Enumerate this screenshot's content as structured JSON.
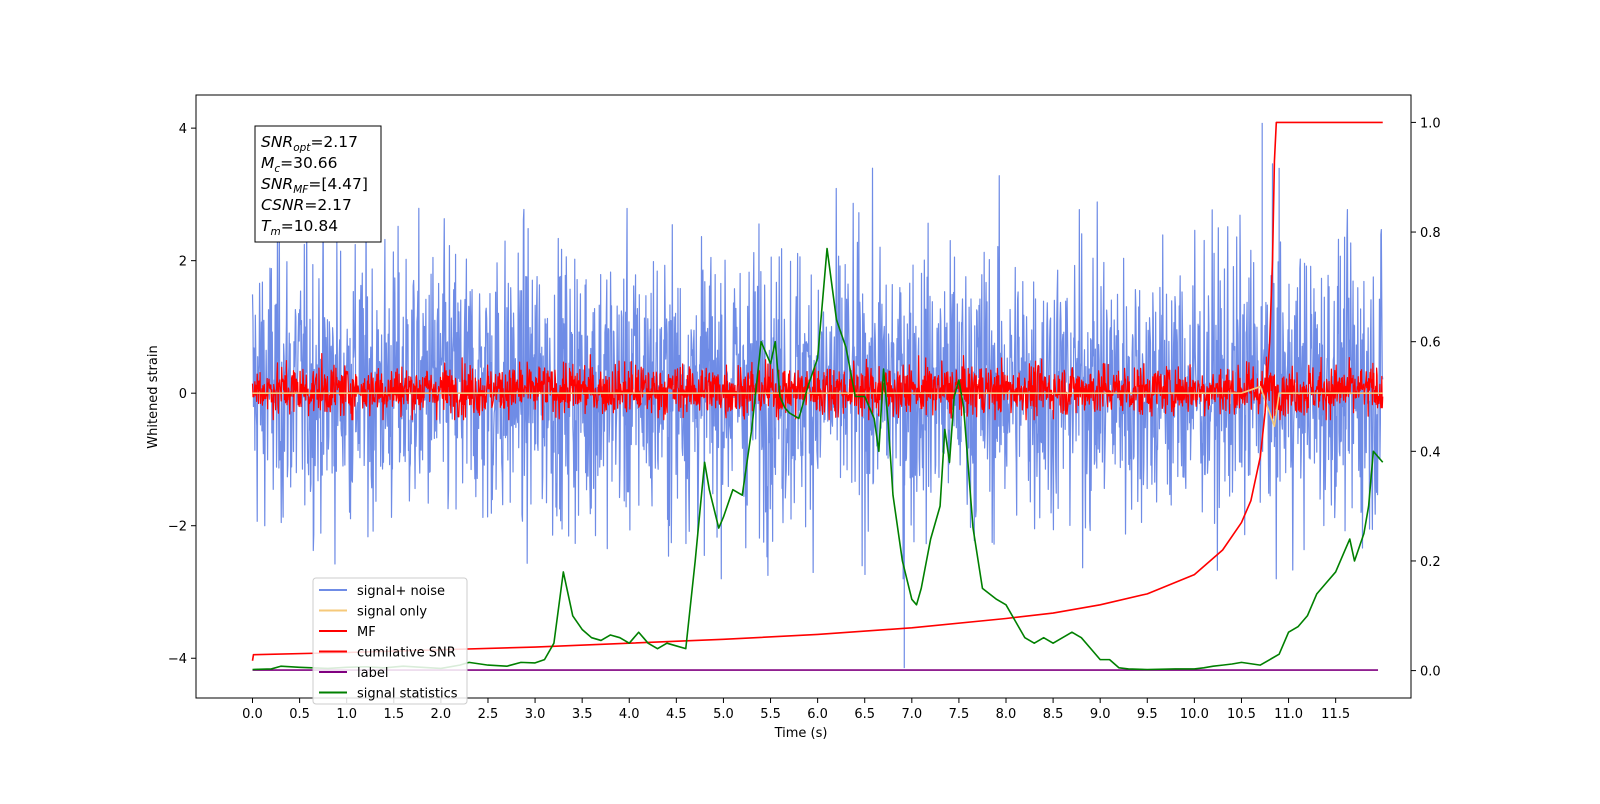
{
  "chart_data": {
    "type": "line",
    "title": "",
    "xlabel": "Time (s)",
    "ylabel": "Whitened strain",
    "xlim": [
      -0.6,
      12.3
    ],
    "ylim_left": [
      -4.6,
      4.5
    ],
    "ylim_right": [
      -0.05,
      1.05
    ],
    "x_ticks": [
      0.0,
      0.5,
      1.0,
      1.5,
      2.0,
      2.5,
      3.0,
      3.5,
      4.0,
      4.5,
      5.0,
      5.5,
      6.0,
      6.5,
      7.0,
      7.5,
      8.0,
      8.5,
      9.0,
      9.5,
      10.0,
      10.5,
      11.0,
      11.5
    ],
    "x_tick_labels": [
      "0.0",
      "0.5",
      "1.0",
      "1.5",
      "2.0",
      "2.5",
      "3.0",
      "3.5",
      "4.0",
      "4.5",
      "5.0",
      "5.5",
      "6.0",
      "6.5",
      "7.0",
      "7.5",
      "8.0",
      "8.5",
      "9.0",
      "9.5",
      "10.0",
      "10.5",
      "11.0",
      "11.5"
    ],
    "y_ticks_left": [
      -4,
      -2,
      0,
      2,
      4
    ],
    "y_tick_labels_left": [
      "−4",
      "−2",
      "0",
      "2",
      "4"
    ],
    "y_ticks_right": [
      0.0,
      0.2,
      0.4,
      0.6,
      0.8,
      1.0
    ],
    "y_tick_labels_right": [
      "0.0",
      "0.2",
      "0.4",
      "0.6",
      "0.8",
      "1.0"
    ],
    "grid": false,
    "legend_position": "lower-left",
    "series": [
      {
        "name": "signal+ noise",
        "axis": "left",
        "color": "#6f8ce6",
        "style": "noise",
        "x_range": [
          0.0,
          12.0
        ],
        "typical_range": [
          -1.8,
          2.0
        ],
        "peak_range": [
          -2.8,
          4.0
        ],
        "spikes": [
          {
            "x": 6.92,
            "y": -4.15
          },
          {
            "x": 10.72,
            "y": 4.08
          },
          {
            "x": 10.9,
            "y": 3.4
          }
        ]
      },
      {
        "name": "signal only",
        "axis": "left",
        "color": "#f6c97a",
        "points": [
          [
            0.0,
            0.0
          ],
          [
            10.5,
            0.0
          ],
          [
            10.7,
            0.1
          ],
          [
            10.8,
            -0.3
          ],
          [
            10.85,
            -0.5
          ],
          [
            10.9,
            0.0
          ],
          [
            12.0,
            0.0
          ]
        ]
      },
      {
        "name": "MF",
        "axis": "left",
        "color": "#ff0000",
        "style": "noise",
        "x_range": [
          0.0,
          12.0
        ],
        "typical_range": [
          -0.3,
          0.4
        ],
        "peak_range": [
          -0.4,
          0.85
        ]
      },
      {
        "name": "cumilative SNR",
        "axis": "right",
        "color": "#ff0000",
        "points": [
          [
            0.0,
            0.018
          ],
          [
            0.01,
            0.029
          ],
          [
            1.0,
            0.033
          ],
          [
            2.0,
            0.038
          ],
          [
            3.0,
            0.043
          ],
          [
            4.0,
            0.05
          ],
          [
            5.0,
            0.057
          ],
          [
            6.0,
            0.066
          ],
          [
            7.0,
            0.078
          ],
          [
            8.0,
            0.095
          ],
          [
            8.5,
            0.105
          ],
          [
            9.0,
            0.12
          ],
          [
            9.5,
            0.14
          ],
          [
            10.0,
            0.175
          ],
          [
            10.3,
            0.22
          ],
          [
            10.5,
            0.27
          ],
          [
            10.6,
            0.31
          ],
          [
            10.7,
            0.39
          ],
          [
            10.75,
            0.47
          ],
          [
            10.8,
            0.6
          ],
          [
            10.83,
            0.75
          ],
          [
            10.85,
            0.93
          ],
          [
            10.87,
            1.0
          ],
          [
            12.0,
            1.0
          ]
        ]
      },
      {
        "name": "label",
        "axis": "right",
        "color": "#800080",
        "points": [
          [
            0.0,
            0.001
          ],
          [
            11.95,
            0.001
          ]
        ]
      },
      {
        "name": "signal statistics",
        "axis": "right",
        "color": "#008000",
        "points": [
          [
            0.0,
            0.002
          ],
          [
            0.2,
            0.003
          ],
          [
            0.3,
            0.008
          ],
          [
            0.5,
            0.006
          ],
          [
            0.8,
            0.004
          ],
          [
            1.0,
            0.006
          ],
          [
            1.2,
            0.007
          ],
          [
            1.4,
            0.005
          ],
          [
            1.6,
            0.008
          ],
          [
            1.8,
            0.006
          ],
          [
            2.0,
            0.004
          ],
          [
            2.2,
            0.01
          ],
          [
            2.3,
            0.015
          ],
          [
            2.5,
            0.01
          ],
          [
            2.7,
            0.008
          ],
          [
            2.85,
            0.015
          ],
          [
            3.0,
            0.014
          ],
          [
            3.1,
            0.02
          ],
          [
            3.2,
            0.05
          ],
          [
            3.3,
            0.18
          ],
          [
            3.4,
            0.1
          ],
          [
            3.5,
            0.075
          ],
          [
            3.6,
            0.06
          ],
          [
            3.7,
            0.055
          ],
          [
            3.8,
            0.065
          ],
          [
            3.9,
            0.06
          ],
          [
            4.0,
            0.05
          ],
          [
            4.05,
            0.06
          ],
          [
            4.1,
            0.07
          ],
          [
            4.15,
            0.06
          ],
          [
            4.2,
            0.05
          ],
          [
            4.3,
            0.04
          ],
          [
            4.4,
            0.05
          ],
          [
            4.5,
            0.045
          ],
          [
            4.6,
            0.04
          ],
          [
            4.7,
            0.2
          ],
          [
            4.8,
            0.38
          ],
          [
            4.85,
            0.33
          ],
          [
            4.95,
            0.26
          ],
          [
            5.0,
            0.28
          ],
          [
            5.1,
            0.33
          ],
          [
            5.2,
            0.32
          ],
          [
            5.3,
            0.44
          ],
          [
            5.4,
            0.6
          ],
          [
            5.5,
            0.56
          ],
          [
            5.55,
            0.6
          ],
          [
            5.6,
            0.5
          ],
          [
            5.65,
            0.48
          ],
          [
            5.7,
            0.47
          ],
          [
            5.8,
            0.46
          ],
          [
            5.9,
            0.52
          ],
          [
            6.0,
            0.57
          ],
          [
            6.1,
            0.77
          ],
          [
            6.2,
            0.64
          ],
          [
            6.3,
            0.59
          ],
          [
            6.4,
            0.5
          ],
          [
            6.5,
            0.5
          ],
          [
            6.6,
            0.46
          ],
          [
            6.65,
            0.4
          ],
          [
            6.7,
            0.55
          ],
          [
            6.75,
            0.45
          ],
          [
            6.8,
            0.32
          ],
          [
            6.9,
            0.2
          ],
          [
            7.0,
            0.13
          ],
          [
            7.05,
            0.12
          ],
          [
            7.1,
            0.15
          ],
          [
            7.2,
            0.24
          ],
          [
            7.3,
            0.3
          ],
          [
            7.35,
            0.44
          ],
          [
            7.4,
            0.38
          ],
          [
            7.45,
            0.5
          ],
          [
            7.5,
            0.53
          ],
          [
            7.55,
            0.48
          ],
          [
            7.65,
            0.26
          ],
          [
            7.75,
            0.15
          ],
          [
            7.9,
            0.13
          ],
          [
            8.0,
            0.12
          ],
          [
            8.1,
            0.09
          ],
          [
            8.2,
            0.06
          ],
          [
            8.3,
            0.05
          ],
          [
            8.4,
            0.06
          ],
          [
            8.5,
            0.05
          ],
          [
            8.6,
            0.06
          ],
          [
            8.7,
            0.07
          ],
          [
            8.8,
            0.06
          ],
          [
            8.9,
            0.04
          ],
          [
            9.0,
            0.02
          ],
          [
            9.1,
            0.02
          ],
          [
            9.2,
            0.005
          ],
          [
            9.3,
            0.003
          ],
          [
            9.5,
            0.002
          ],
          [
            9.8,
            0.003
          ],
          [
            10.0,
            0.003
          ],
          [
            10.1,
            0.005
          ],
          [
            10.2,
            0.008
          ],
          [
            10.3,
            0.01
          ],
          [
            10.4,
            0.012
          ],
          [
            10.5,
            0.015
          ],
          [
            10.7,
            0.01
          ],
          [
            10.8,
            0.02
          ],
          [
            10.9,
            0.03
          ],
          [
            11.0,
            0.07
          ],
          [
            11.1,
            0.08
          ],
          [
            11.2,
            0.1
          ],
          [
            11.3,
            0.14
          ],
          [
            11.4,
            0.16
          ],
          [
            11.5,
            0.18
          ],
          [
            11.6,
            0.22
          ],
          [
            11.65,
            0.24
          ],
          [
            11.7,
            0.2
          ],
          [
            11.8,
            0.25
          ],
          [
            11.85,
            0.3
          ],
          [
            11.9,
            0.4
          ],
          [
            12.0,
            0.38
          ]
        ]
      }
    ],
    "annotation": {
      "lines": [
        {
          "base": "SNR",
          "sub": "opt",
          "value": "=2.17"
        },
        {
          "base": "M",
          "sub": "c",
          "value": "=30.66"
        },
        {
          "base": "SNR",
          "sub": "MF",
          "value": "=[4.47]"
        },
        {
          "base": "CSNR",
          "sub": "",
          "value": "=2.17"
        },
        {
          "base": "T",
          "sub": "m",
          "value": "=10.84"
        }
      ]
    }
  }
}
